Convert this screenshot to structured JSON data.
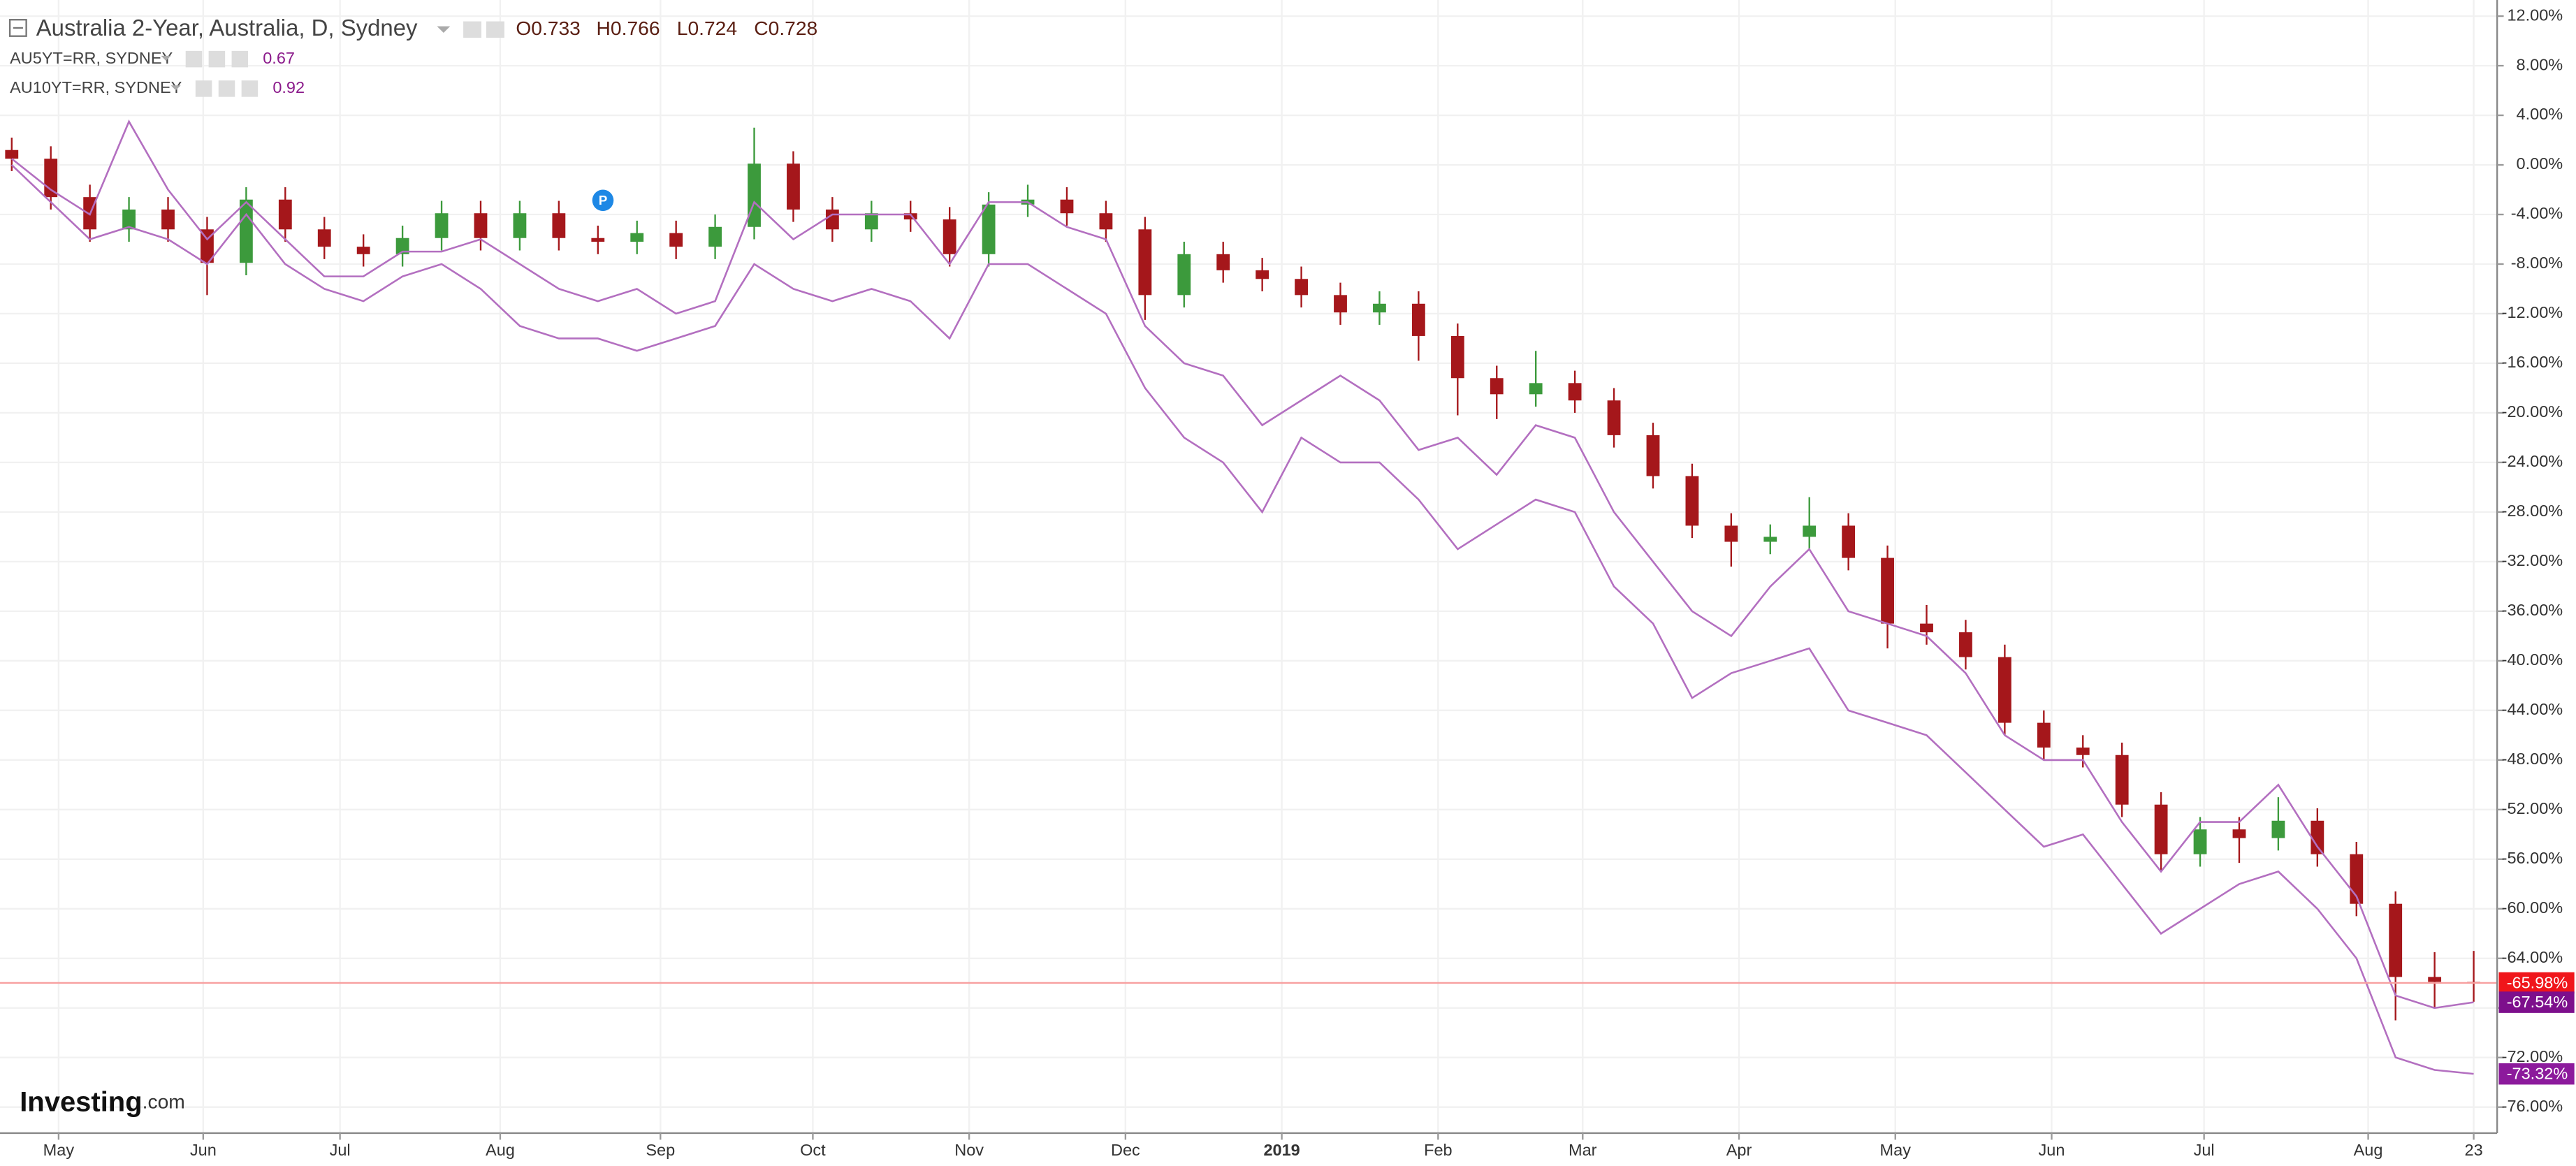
{
  "chart_data": {
    "type": "candlestick",
    "header": {
      "ohlc_labels": [
        "O0.733",
        "H0.766",
        "L0.724",
        "C0.728"
      ]
    },
    "logo": {
      "name": "Investing",
      "suffix": ".com"
    },
    "categories": [
      null,
      null,
      null,
      null,
      null,
      null,
      null,
      null,
      null,
      null,
      null,
      null,
      null,
      null,
      null,
      null,
      null,
      null,
      null,
      null,
      null,
      null,
      null,
      null,
      null,
      null,
      null,
      null,
      null,
      null,
      null,
      null,
      null,
      null,
      null,
      null,
      null,
      null,
      null,
      null,
      null,
      null,
      null,
      null,
      null,
      null,
      null,
      null,
      null,
      null,
      null,
      null,
      null,
      null,
      null,
      null,
      null,
      null,
      null,
      null,
      null,
      null,
      null,
      null
    ],
    "xlim": [
      -0.3,
      63.6
    ],
    "xticks": [
      {
        "value": 1.2,
        "label": "May"
      },
      {
        "value": 4.9,
        "label": "Jun"
      },
      {
        "value": 8.4,
        "label": "Jul"
      },
      {
        "value": 12.5,
        "label": "Aug"
      },
      {
        "value": 16.6,
        "label": "Sep"
      },
      {
        "value": 20.5,
        "label": "Oct"
      },
      {
        "value": 24.5,
        "label": "Nov"
      },
      {
        "value": 28.5,
        "label": "Dec"
      },
      {
        "value": 32.5,
        "label": "2019"
      },
      {
        "value": 36.5,
        "label": "Feb"
      },
      {
        "value": 40.2,
        "label": "Mar"
      },
      {
        "value": 44.2,
        "label": "Apr"
      },
      {
        "value": 48.2,
        "label": "May"
      },
      {
        "value": 52.2,
        "label": "Jun"
      },
      {
        "value": 56.1,
        "label": "Jul"
      },
      {
        "value": 60.3,
        "label": "Aug"
      },
      {
        "value": 63.0,
        "label": "23"
      }
    ],
    "ylim": [
      -78.1,
      13.3
    ],
    "yticks": [
      {
        "value": 12,
        "label": "12.00%"
      },
      {
        "value": 8,
        "label": "8.00%"
      },
      {
        "value": 4,
        "label": "4.00%"
      },
      {
        "value": 0,
        "label": "0.00%"
      },
      {
        "value": -4,
        "label": "-4.00%"
      },
      {
        "value": -8,
        "label": "-8.00%"
      },
      {
        "value": -12,
        "label": "-12.00%"
      },
      {
        "value": -16,
        "label": "-16.00%"
      },
      {
        "value": -20,
        "label": "-20.00%"
      },
      {
        "value": -24,
        "label": "-24.00%"
      },
      {
        "value": -28,
        "label": "-28.00%"
      },
      {
        "value": -32,
        "label": "-32.00%"
      },
      {
        "value": -36,
        "label": "-36.00%"
      },
      {
        "value": -40,
        "label": "-40.00%"
      },
      {
        "value": -44,
        "label": "-44.00%"
      },
      {
        "value": -48,
        "label": "-48.00%"
      },
      {
        "value": -52,
        "label": "-52.00%"
      },
      {
        "value": -56,
        "label": "-56.00%"
      },
      {
        "value": -60,
        "label": "-60.00%"
      },
      {
        "value": -64,
        "label": "-64.00%"
      },
      {
        "value": -68,
        "label": "-68.00%"
      },
      {
        "value": -72,
        "label": "-72.00%"
      },
      {
        "value": -76,
        "label": "-76.00%"
      }
    ],
    "grid": true,
    "series": [
      {
        "name": "Australia 2-Year, Australia, D, Sydney",
        "type": "candlestick",
        "up_color": "#3c9a3c",
        "down_color": "#a5171b",
        "label_color": "#f0161b",
        "open": [
          1.2,
          0.5,
          -2.6,
          -5.2,
          -3.6,
          -5.2,
          -7.9,
          -2.8,
          -5.2,
          -6.6,
          -7.2,
          -5.9,
          -3.9,
          -5.9,
          -3.9,
          -5.9,
          -6.2,
          -5.5,
          -6.6,
          -5.0,
          0.1,
          -3.6,
          -5.2,
          -3.9,
          -4.4,
          -7.2,
          -3.2,
          -2.8,
          -3.9,
          -5.2,
          -10.5,
          -7.2,
          -8.5,
          -9.2,
          -10.5,
          -11.9,
          -11.2,
          -13.8,
          -17.2,
          -18.5,
          -17.6,
          -19.0,
          -21.8,
          -25.1,
          -29.1,
          -30.4,
          -30.0,
          -29.1,
          -31.7,
          -37.0,
          -37.7,
          -39.7,
          -45.0,
          -47.0,
          -47.6,
          -51.6,
          -55.6,
          -53.6,
          -54.3,
          -52.9,
          -55.6,
          -59.6,
          -65.5,
          -65.9
        ],
        "high": [
          2.2,
          1.5,
          -1.6,
          -2.6,
          -2.6,
          -4.2,
          -1.8,
          -1.8,
          -4.2,
          -5.6,
          -4.9,
          -2.9,
          -2.9,
          -2.9,
          -2.9,
          -4.9,
          -4.5,
          -4.5,
          -4.0,
          3.0,
          1.1,
          -2.6,
          -2.9,
          -2.9,
          -3.4,
          -2.2,
          -1.6,
          -1.8,
          -2.9,
          -4.2,
          -6.2,
          -6.2,
          -7.5,
          -8.2,
          -9.5,
          -10.2,
          -10.2,
          -12.8,
          -16.2,
          -15.0,
          -16.6,
          -18.0,
          -20.8,
          -24.1,
          -28.1,
          -29.0,
          -26.8,
          -28.1,
          -30.7,
          -35.5,
          -36.7,
          -38.7,
          -44.0,
          -46.0,
          -46.6,
          -50.6,
          -52.6,
          -52.6,
          -51.0,
          -51.9,
          -54.6,
          -58.6,
          -63.5,
          -63.4
        ],
        "low": [
          -0.5,
          -3.6,
          -6.2,
          -6.2,
          -6.2,
          -10.5,
          -8.9,
          -6.2,
          -7.6,
          -8.2,
          -8.2,
          -6.9,
          -6.9,
          -6.9,
          -6.9,
          -7.2,
          -7.2,
          -7.6,
          -7.6,
          -6.0,
          -4.6,
          -6.2,
          -6.2,
          -5.4,
          -8.2,
          -8.2,
          -4.2,
          -4.9,
          -6.2,
          -12.5,
          -11.5,
          -9.5,
          -10.2,
          -11.5,
          -12.9,
          -12.9,
          -15.8,
          -20.2,
          -20.5,
          -19.5,
          -20.0,
          -22.8,
          -26.1,
          -30.1,
          -32.4,
          -31.4,
          -31.0,
          -32.7,
          -39.0,
          -38.7,
          -40.7,
          -46.0,
          -48.0,
          -48.6,
          -52.6,
          -57.0,
          -56.6,
          -56.3,
          -55.3,
          -56.6,
          -60.6,
          -69.0,
          -68.0,
          -67.5
        ],
        "close": [
          0.5,
          -2.6,
          -5.2,
          -3.6,
          -5.2,
          -7.9,
          -2.8,
          -5.2,
          -6.6,
          -7.2,
          -5.9,
          -3.9,
          -5.9,
          -3.9,
          -5.9,
          -6.2,
          -5.5,
          -6.6,
          -5.0,
          0.1,
          -3.6,
          -5.2,
          -3.9,
          -4.4,
          -7.2,
          -3.2,
          -2.8,
          -3.9,
          -5.2,
          -10.5,
          -7.2,
          -8.5,
          -9.2,
          -10.5,
          -11.9,
          -11.2,
          -13.8,
          -17.2,
          -18.5,
          -17.6,
          -19.0,
          -21.8,
          -25.1,
          -29.1,
          -30.4,
          -30.0,
          -29.1,
          -31.7,
          -37.0,
          -37.7,
          -39.7,
          -45.0,
          -47.0,
          -47.6,
          -51.6,
          -55.6,
          -53.6,
          -54.3,
          -52.9,
          -55.6,
          -59.6,
          -65.5,
          -65.9,
          -65.98
        ],
        "value_labels": [
          null,
          null,
          null,
          null,
          null,
          null,
          null,
          null,
          null,
          null,
          null,
          null,
          null,
          null,
          null,
          null,
          null,
          null,
          null,
          null,
          null,
          null,
          null,
          null,
          null,
          null,
          null,
          null,
          null,
          null,
          null,
          null,
          null,
          null,
          null,
          null,
          null,
          null,
          null,
          null,
          null,
          null,
          null,
          null,
          null,
          null,
          null,
          null,
          null,
          null,
          null,
          null,
          null,
          null,
          null,
          null,
          null,
          null,
          null,
          null,
          null,
          null,
          null,
          "-65.98%"
        ]
      },
      {
        "name": "AU5YT=RR, SYDNEY",
        "type": "line",
        "color": "#b36fc0",
        "label_color": "#7d0f8c",
        "legend_value": 0.67,
        "values": [
          0.5,
          -2,
          -4,
          3.5,
          -2,
          -6,
          -3,
          -6,
          -9,
          -9,
          -7,
          -7,
          -6,
          -8,
          -10,
          -11,
          -10,
          -12,
          -11,
          -3,
          -6,
          -4,
          -4,
          -4,
          -8,
          -3,
          -3,
          -5,
          -6,
          -13,
          -16,
          -17,
          -21,
          -19,
          -17,
          -19,
          -23,
          -22,
          -25,
          -21,
          -22,
          -28,
          -32,
          -36,
          -38,
          -34,
          -31,
          -36,
          -37,
          -38,
          -41,
          -46,
          -48,
          -48,
          -53,
          -57,
          -53,
          -53,
          -50,
          -55,
          -59,
          -67,
          -68,
          -67.54
        ],
        "value_labels": [
          null,
          null,
          null,
          null,
          null,
          null,
          null,
          null,
          null,
          null,
          null,
          null,
          null,
          null,
          null,
          null,
          null,
          null,
          null,
          null,
          null,
          null,
          null,
          null,
          null,
          null,
          null,
          null,
          null,
          null,
          null,
          null,
          null,
          null,
          null,
          null,
          null,
          null,
          null,
          null,
          null,
          null,
          null,
          null,
          null,
          null,
          null,
          null,
          null,
          null,
          null,
          null,
          null,
          null,
          null,
          null,
          null,
          null,
          null,
          null,
          null,
          null,
          null,
          "-67.54%"
        ]
      },
      {
        "name": "AU10YT=RR, SYDNEY",
        "type": "line",
        "color": "#b36fc0",
        "label_color": "#8c1a9c",
        "legend_value": 0.92,
        "values": [
          0,
          -3,
          -6,
          -5,
          -6,
          -8,
          -4,
          -8,
          -10,
          -11,
          -9,
          -8,
          -10,
          -13,
          -14,
          -14,
          -15,
          -14,
          -13,
          -8,
          -10,
          -11,
          -10,
          -11,
          -14,
          -8,
          -8,
          -10,
          -12,
          -18,
          -22,
          -24,
          -28,
          -22,
          -24,
          -24,
          -27,
          -31,
          -29,
          -27,
          -28,
          -34,
          -37,
          -43,
          -41,
          -40,
          -39,
          -44,
          -45,
          -46,
          -49,
          -52,
          -55,
          -54,
          -58,
          -62,
          -60,
          -58,
          -57,
          -60,
          -64,
          -72,
          -73,
          -73.32
        ],
        "value_labels": [
          null,
          null,
          null,
          null,
          null,
          null,
          null,
          null,
          null,
          null,
          null,
          null,
          null,
          null,
          null,
          null,
          null,
          null,
          null,
          null,
          null,
          null,
          null,
          null,
          null,
          null,
          null,
          null,
          null,
          null,
          null,
          null,
          null,
          null,
          null,
          null,
          null,
          null,
          null,
          null,
          null,
          null,
          null,
          null,
          null,
          null,
          null,
          null,
          null,
          null,
          null,
          null,
          null,
          null,
          null,
          null,
          null,
          null,
          null,
          null,
          null,
          null,
          null,
          "-73.32%"
        ]
      }
    ],
    "annotation": "P"
  }
}
